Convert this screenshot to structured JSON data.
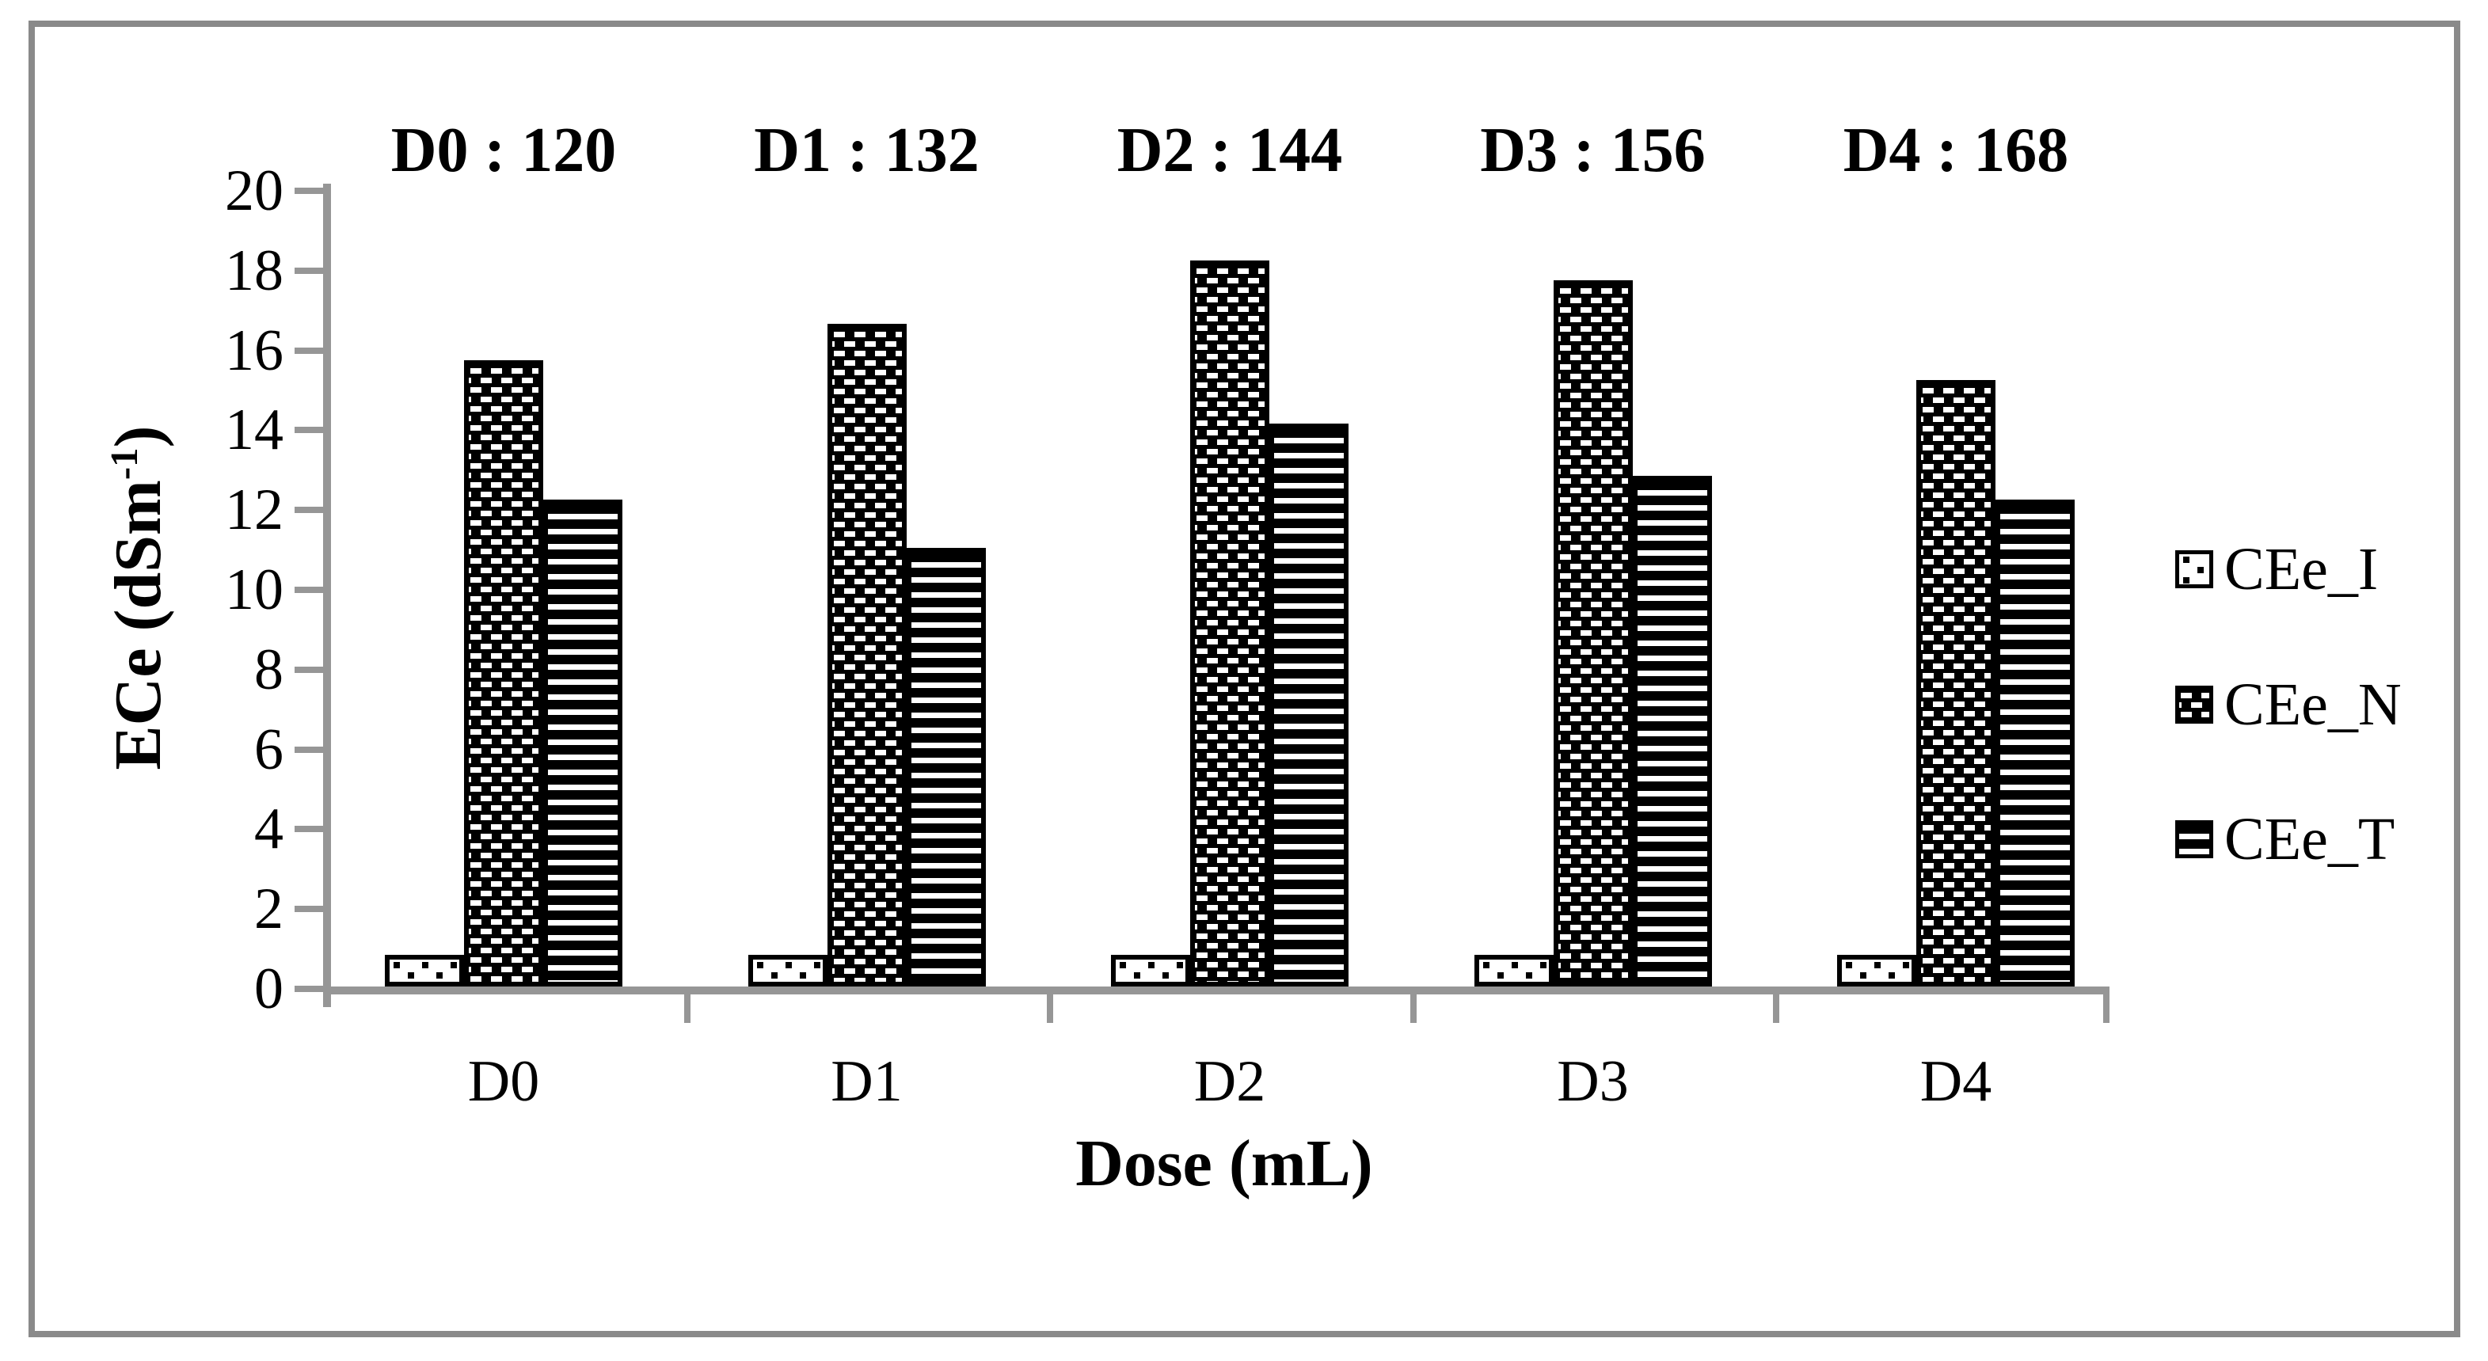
{
  "chart_data": {
    "type": "bar",
    "title": "",
    "categories": [
      "D0",
      "D1",
      "D2",
      "D3",
      "D4"
    ],
    "series": [
      {
        "name": "CEe_I",
        "pattern": "dots",
        "values": [
          0.8,
          0.8,
          0.8,
          0.8,
          0.8
        ]
      },
      {
        "name": "CEe_N",
        "pattern": "checker",
        "values": [
          15.7,
          16.6,
          18.2,
          17.7,
          15.2
        ]
      },
      {
        "name": "CEe_T",
        "pattern": "hlines",
        "values": [
          12.2,
          11.0,
          14.1,
          12.8,
          12.2
        ]
      }
    ],
    "annotations": [
      "D0 : 120",
      "D1 : 132",
      "D2 : 144",
      "D3 : 156",
      "D4 : 168"
    ],
    "xlabel": "Dose (mL)",
    "ylabel": {
      "pre": "ECe (dSm",
      "sup": "-1",
      "post": ")"
    },
    "ylim": [
      0,
      20
    ],
    "ytick_step": 2,
    "grid": false,
    "legend_position": "right",
    "bar_color": "#000000",
    "axis_color": "#969696",
    "frame_color": "#8a8a8a",
    "background_color": "#ffffff"
  }
}
